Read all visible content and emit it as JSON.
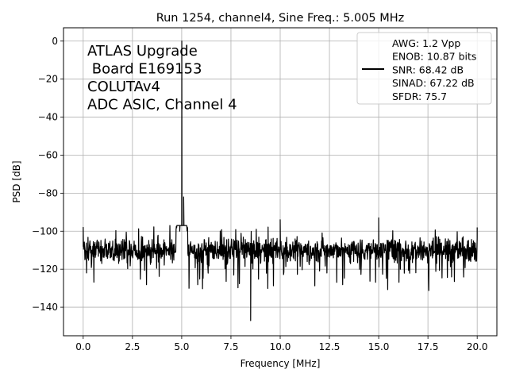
{
  "chart_data": {
    "type": "line",
    "title": "Run 1254, channel4, Sine Freq.: 5.005 MHz",
    "xlabel": "Frequency [MHz]",
    "ylabel": "PSD [dB]",
    "xlim": [
      -1.0,
      21.0
    ],
    "ylim": [
      -155,
      7
    ],
    "grid": true,
    "xticks": [
      0.0,
      2.5,
      5.0,
      7.5,
      10.0,
      12.5,
      15.0,
      17.5,
      20.0
    ],
    "xtick_labels": [
      "0.0",
      "2.5",
      "5.0",
      "7.5",
      "10.0",
      "12.5",
      "15.0",
      "17.5",
      "20.0"
    ],
    "yticks": [
      0,
      -20,
      -40,
      -60,
      -80,
      -100,
      -120,
      -140
    ],
    "ytick_labels": [
      "0",
      "−20",
      "−40",
      "−60",
      "−80",
      "−100",
      "−120",
      "−140"
    ],
    "annotation": [
      "ATLAS Upgrade",
      " Board E169153",
      "COLUTAv4",
      "ADC ASIC, Channel 4"
    ],
    "legend": {
      "placement": "top-right",
      "lines": [
        "AWG: 1.2 Vpp",
        "ENOB: 10.87 bits",
        "SNR: 68.42 dB",
        "SINAD: 67.22 dB",
        "SFDR: 75.7"
      ]
    },
    "series": [
      {
        "color": "#000000",
        "noise_floor_db": -110,
        "signal_peak": {
          "x": 5.005,
          "y": 0
        },
        "key_points": [
          {
            "x": 0.0,
            "y": -98
          },
          {
            "x": 4.9,
            "y": -100
          },
          {
            "x": 5.005,
            "y": 0
          },
          {
            "x": 5.1,
            "y": -82
          },
          {
            "x": 8.5,
            "y": -147
          },
          {
            "x": 10.0,
            "y": -94
          },
          {
            "x": 15.0,
            "y": -93
          },
          {
            "x": 20.0,
            "y": -98
          }
        ]
      }
    ]
  }
}
